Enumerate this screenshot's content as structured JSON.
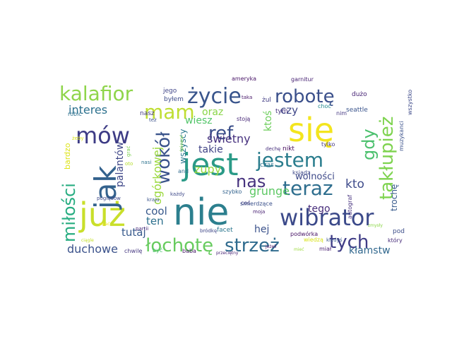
{
  "words": [
    {
      "text": "nie",
      "color": "#2c7f8e"
    },
    {
      "text": "jest",
      "color": "#2a9a87"
    },
    {
      "text": "się",
      "color": "#f3e51e"
    },
    {
      "text": "już",
      "color": "#c9df2a"
    },
    {
      "text": "jak",
      "color": "#34628d"
    },
    {
      "text": "jestem",
      "color": "#2a7d8d"
    },
    {
      "text": "wibrator",
      "color": "#3c4a8a"
    },
    {
      "text": "tych",
      "color": "#3f3c86"
    },
    {
      "text": "mów",
      "color": "#3d3b85"
    },
    {
      "text": "życie",
      "color": "#39558c"
    },
    {
      "text": "robotę",
      "color": "#3b508b"
    },
    {
      "text": "teraz",
      "color": "#2e6e8e"
    },
    {
      "text": "mam",
      "color": "#bfde32"
    },
    {
      "text": "kalafior",
      "color": "#8fd54b"
    },
    {
      "text": "łochotę",
      "color": "#67cb5e"
    },
    {
      "text": "strzeż",
      "color": "#2f6b8e"
    },
    {
      "text": "ref",
      "color": "#3b4f8a"
    },
    {
      "text": "nas",
      "color": "#46327e"
    },
    {
      "text": "wokół",
      "color": "#3a538b"
    },
    {
      "text": "gdy",
      "color": "#4bc06d"
    },
    {
      "text": "takłupież",
      "color": "#7ed34f"
    },
    {
      "text": "miłości",
      "color": "#27ad81"
    },
    {
      "text": "duchowe",
      "color": "#3b528b"
    },
    {
      "text": "grunge",
      "color": "#5cc863"
    },
    {
      "text": "kto",
      "color": "#3e4b8a"
    },
    {
      "text": "świetny",
      "color": "#46317e"
    },
    {
      "text": "zupy",
      "color": "#95d840"
    },
    {
      "text": "czy",
      "color": "#3f4788"
    },
    {
      "text": "interes",
      "color": "#2c718e"
    },
    {
      "text": "oraz",
      "color": "#89d548"
    },
    {
      "text": "wiesz",
      "color": "#52c569"
    },
    {
      "text": "takie",
      "color": "#414487"
    },
    {
      "text": "cool",
      "color": "#38598c"
    },
    {
      "text": "ten",
      "color": "#2d708e"
    },
    {
      "text": "tutaj",
      "color": "#375a8c"
    },
    {
      "text": "hej",
      "color": "#3b528b"
    },
    {
      "text": "tego",
      "color": "#472d7b"
    },
    {
      "text": "kłamstw",
      "color": "#31688e"
    },
    {
      "text": "ogórkowej",
      "color": "#9bd93c"
    },
    {
      "text": "palantów",
      "color": "#3f4788"
    },
    {
      "text": "ktoś",
      "color": "#6ccd5a"
    },
    {
      "text": "wolności",
      "color": "#3e4989"
    },
    {
      "text": "trochę",
      "color": "#375a8c"
    },
    {
      "text": "wszyscy",
      "color": "#2a778e"
    },
    {
      "text": "bardzo",
      "color": "#dde318"
    },
    {
      "text": "jego",
      "color": "#404588"
    },
    {
      "text": "nasz",
      "color": "#443a83"
    },
    {
      "text": "robić",
      "color": "#2d718e"
    },
    {
      "text": "ameryka",
      "color": "#481467"
    },
    {
      "text": "garnitur",
      "color": "#482374"
    },
    {
      "text": "byłem",
      "color": "#3e4c8a"
    },
    {
      "text": "żul",
      "color": "#433e85"
    },
    {
      "text": "dużo",
      "color": "#482576"
    },
    {
      "text": "seattle",
      "color": "#3a548c"
    },
    {
      "text": "wszystko",
      "color": "#3e4a89"
    },
    {
      "text": "muzykanci",
      "color": "#3b528b"
    },
    {
      "text": "stoją",
      "color": "#482878"
    },
    {
      "text": "tym",
      "color": "#46307e"
    },
    {
      "text": "nim",
      "color": "#453882"
    },
    {
      "text": "choc",
      "color": "#23898e"
    },
    {
      "text": "tylko",
      "color": "#443983"
    },
    {
      "text": "nikt",
      "color": "#460b5e"
    },
    {
      "text": "czas",
      "color": "#2c738e"
    },
    {
      "text": "ksiądz",
      "color": "#3e4989"
    },
    {
      "text": "autograf",
      "color": "#46317e"
    },
    {
      "text": "dechę",
      "color": "#472f7d"
    },
    {
      "text": "taka",
      "color": "#481769"
    },
    {
      "text": "też",
      "color": "#3b518b"
    },
    {
      "text": "grać",
      "color": "#7ad151"
    },
    {
      "text": "nasi",
      "color": "#2c728e"
    },
    {
      "text": "and",
      "color": "#306a8e"
    },
    {
      "text": "oto",
      "color": "#b5de2b"
    },
    {
      "text": "żeby",
      "color": "#dae319"
    },
    {
      "text": "poglądów",
      "color": "#3e4989"
    },
    {
      "text": "każdy",
      "color": "#3e4989"
    },
    {
      "text": "szybko",
      "color": "#33638d"
    },
    {
      "text": "kraju",
      "color": "#3a548c"
    },
    {
      "text": "partii",
      "color": "#472a7a"
    },
    {
      "text": "coś",
      "color": "#44397f"
    },
    {
      "text": "smierdzące",
      "color": "#3b518b"
    },
    {
      "text": "moja",
      "color": "#482173"
    },
    {
      "text": "podwórka",
      "color": "#471365"
    },
    {
      "text": "wiedzą",
      "color": "#d8e219"
    },
    {
      "text": "kiedyś",
      "color": "#39568c"
    },
    {
      "text": "który",
      "color": "#472c7a"
    },
    {
      "text": "pod",
      "color": "#3d4e8a"
    },
    {
      "text": "miał",
      "color": "#481f70"
    },
    {
      "text": "jeżeli",
      "color": "#471164"
    },
    {
      "text": "facet",
      "color": "#2a768e"
    },
    {
      "text": "bródkę",
      "color": "#3f4788"
    },
    {
      "text": "chwilę",
      "color": "#453781"
    },
    {
      "text": "być",
      "color": "#4ac16d"
    },
    {
      "text": "baba",
      "color": "#48186a"
    },
    {
      "text": "przeciętny",
      "color": "#482475"
    },
    {
      "text": "śpiewać",
      "color": "#7fd34e"
    },
    {
      "text": "ciągle",
      "color": "#c2df23"
    },
    {
      "text": "zmysły",
      "color": "#8bd646"
    },
    {
      "text": "pisać",
      "color": "#f1e51d"
    },
    {
      "text": "mieć",
      "color": "#9bd93c"
    }
  ]
}
